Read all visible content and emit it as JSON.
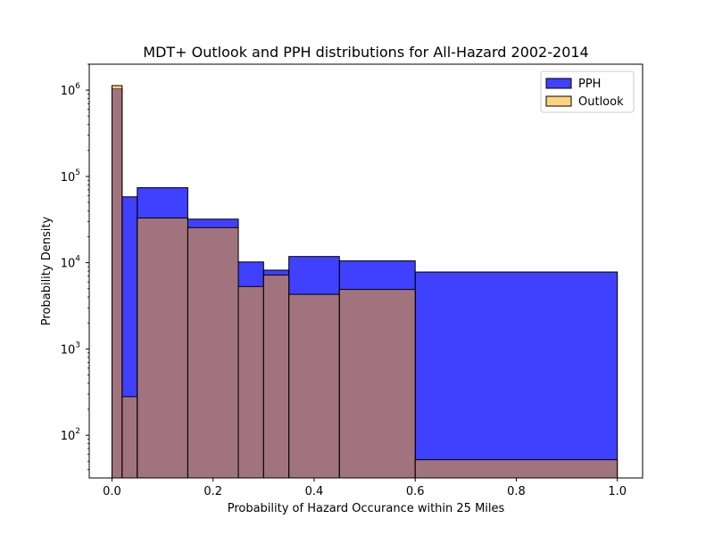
{
  "chart_data": {
    "type": "bar",
    "title": "MDT+ Outlook and PPH distributions for All-Hazard 2002-2014",
    "xlabel": "Probability of Hazard Occurance within 25 Miles",
    "ylabel": "Probability Density",
    "xlim": [
      -0.045,
      1.05
    ],
    "ylim": [
      32,
      2000000
    ],
    "yscale": "log",
    "xticks": [
      0.0,
      0.2,
      0.4,
      0.6,
      0.8,
      1.0
    ],
    "xtick_labels": [
      "0.0",
      "0.2",
      "0.4",
      "0.6",
      "0.8",
      "1.0"
    ],
    "yticks": [
      100,
      1000,
      10000,
      100000,
      1000000
    ],
    "ytick_base": "10",
    "ytick_exponents": [
      "2",
      "3",
      "4",
      "5",
      "6"
    ],
    "bin_edges": [
      0,
      0.02,
      0.05,
      0.15,
      0.25,
      0.3,
      0.35,
      0.45,
      0.6,
      1.0
    ],
    "series": [
      {
        "name": "PPH",
        "color": "#0000ff",
        "opacity": 0.75,
        "values": [
          1040000,
          58000,
          74000,
          32000,
          10200,
          8200,
          11800,
          10500,
          7800
        ]
      },
      {
        "name": "Outlook",
        "color": "#ffa500",
        "opacity": 0.5,
        "values": [
          1130000,
          280,
          33000,
          25500,
          5300,
          7200,
          4300,
          4900,
          52
        ]
      }
    ],
    "legend": {
      "position": "top-right"
    },
    "grid": false
  }
}
